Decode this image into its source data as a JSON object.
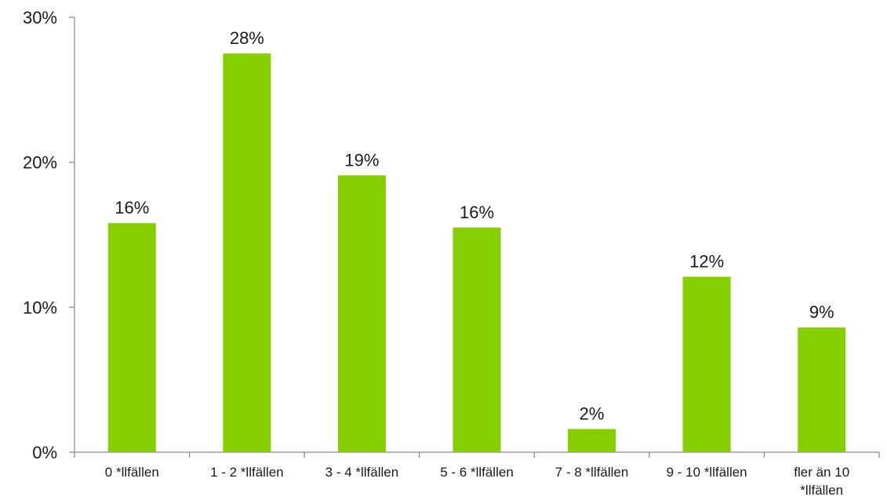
{
  "chart_data": {
    "type": "bar",
    "categories": [
      [
        "0 *llfällen"
      ],
      [
        "1 - 2 *llfällen"
      ],
      [
        "3 - 4 *llfällen"
      ],
      [
        "5 - 6 *llfällen"
      ],
      [
        "7 - 8 *llfällen"
      ],
      [
        "9 - 10 *llfällen"
      ],
      [
        "fler än 10",
        "*llfällen"
      ]
    ],
    "values": [
      15.8,
      27.5,
      19.1,
      15.5,
      1.6,
      12.1,
      8.6
    ],
    "data_labels": [
      "16%",
      "28%",
      "19%",
      "16%",
      "2%",
      "12%",
      "9%"
    ],
    "ylim": [
      0,
      30
    ],
    "yticks": [
      0,
      10,
      20,
      30
    ],
    "ytick_labels": [
      "0%",
      "10%",
      "20%",
      "30%"
    ],
    "title": "",
    "xlabel": "",
    "ylabel": "",
    "grid": false,
    "bar_color": "#85cf00",
    "axis_color": "#8c8c8c"
  }
}
